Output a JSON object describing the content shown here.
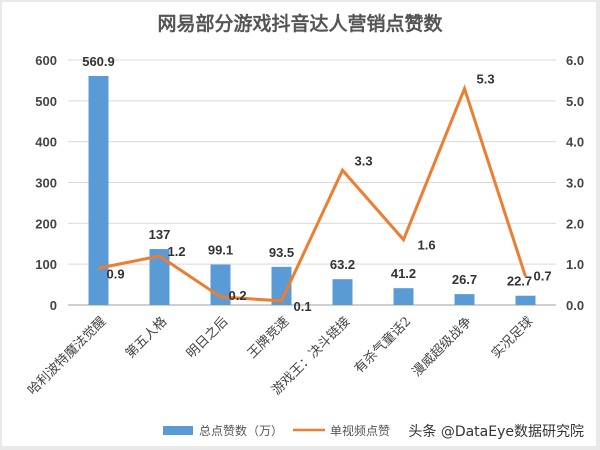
{
  "chart_data": {
    "type": "bar+line",
    "title": "网易部分游戏抖音达人营销点赞数",
    "categories": [
      "哈利波特魔法觉醒",
      "第五人格",
      "明日之后",
      "王牌竞速",
      "游戏王：决斗链接",
      "有杀气童话2",
      "漫威超级战争",
      "实况足球"
    ],
    "series": [
      {
        "name": "总点赞数（万）",
        "type": "bar",
        "axis": "left",
        "color": "#5b9bd5",
        "values": [
          560.9,
          137,
          99.1,
          93.5,
          63.2,
          41.2,
          26.7,
          22.7
        ],
        "labels": [
          "560.9",
          "137",
          "99.1",
          "93.5",
          "63.2",
          "41.2",
          "26.7",
          "22.7"
        ]
      },
      {
        "name": "单视频点赞",
        "type": "line",
        "axis": "right",
        "color": "#ed7d31",
        "values": [
          0.9,
          1.2,
          0.2,
          0.1,
          3.3,
          1.6,
          5.3,
          0.7
        ],
        "labels": [
          "0.9",
          "1.2",
          "0.2",
          "0.1",
          "3.3",
          "1.6",
          "5.3",
          "0.7"
        ]
      }
    ],
    "left_axis": {
      "ylim": [
        0,
        600
      ],
      "ticks": [
        "0",
        "100",
        "200",
        "300",
        "400",
        "500",
        "600"
      ]
    },
    "right_axis": {
      "ylim": [
        0,
        6
      ],
      "ticks": [
        "0.0",
        "1.0",
        "2.0",
        "3.0",
        "4.0",
        "5.0",
        "6.0"
      ]
    },
    "grid": true,
    "legend_position": "bottom"
  },
  "legend": {
    "bar_label": "总点赞数（万）",
    "line_label": "单视频点赞"
  },
  "watermark": "头条 @DataEye数据研究院"
}
